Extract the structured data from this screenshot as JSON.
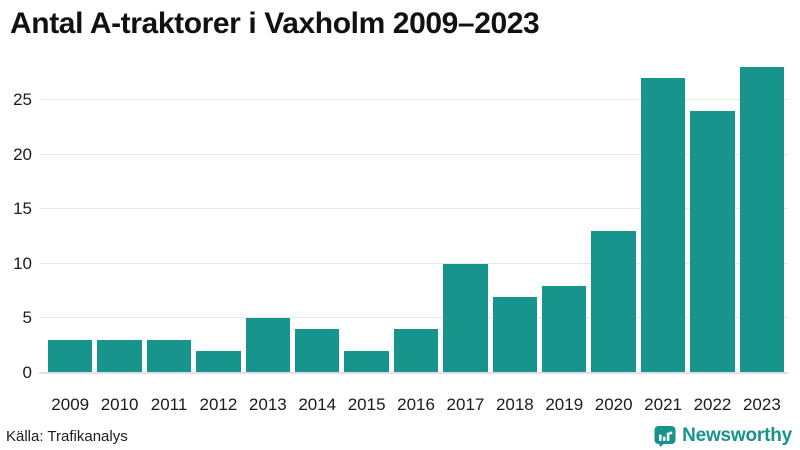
{
  "title": "Antal A-traktorer i Vaxholm 2009–2023",
  "source": "Källa: Trafikanalys",
  "branding": {
    "name": "Newsworthy",
    "logo_icon": "speech-bubble-bar-chart"
  },
  "colors": {
    "bar": "#17948C",
    "grid": "#E7E6EC",
    "axis_line": "#E0DFE5",
    "title": "#111111",
    "label": "#1C1C1C",
    "brand": "#17948C"
  },
  "chart_data": {
    "type": "bar",
    "title": "Antal A-traktorer i Vaxholm 2009–2023",
    "categories": [
      "2009",
      "2010",
      "2011",
      "2012",
      "2013",
      "2014",
      "2015",
      "2016",
      "2017",
      "2018",
      "2019",
      "2020",
      "2021",
      "2022",
      "2023"
    ],
    "values": [
      3,
      3,
      3,
      2,
      5,
      4,
      2,
      4,
      10,
      7,
      8,
      13,
      27,
      24,
      28
    ],
    "xlabel": "",
    "ylabel": "",
    "ylim": [
      0,
      28.2
    ],
    "yticks": [
      0,
      5,
      10,
      15,
      20,
      25
    ],
    "grid": "horizontal",
    "legend": "none",
    "source_note": "Källa: Trafikanalys"
  }
}
